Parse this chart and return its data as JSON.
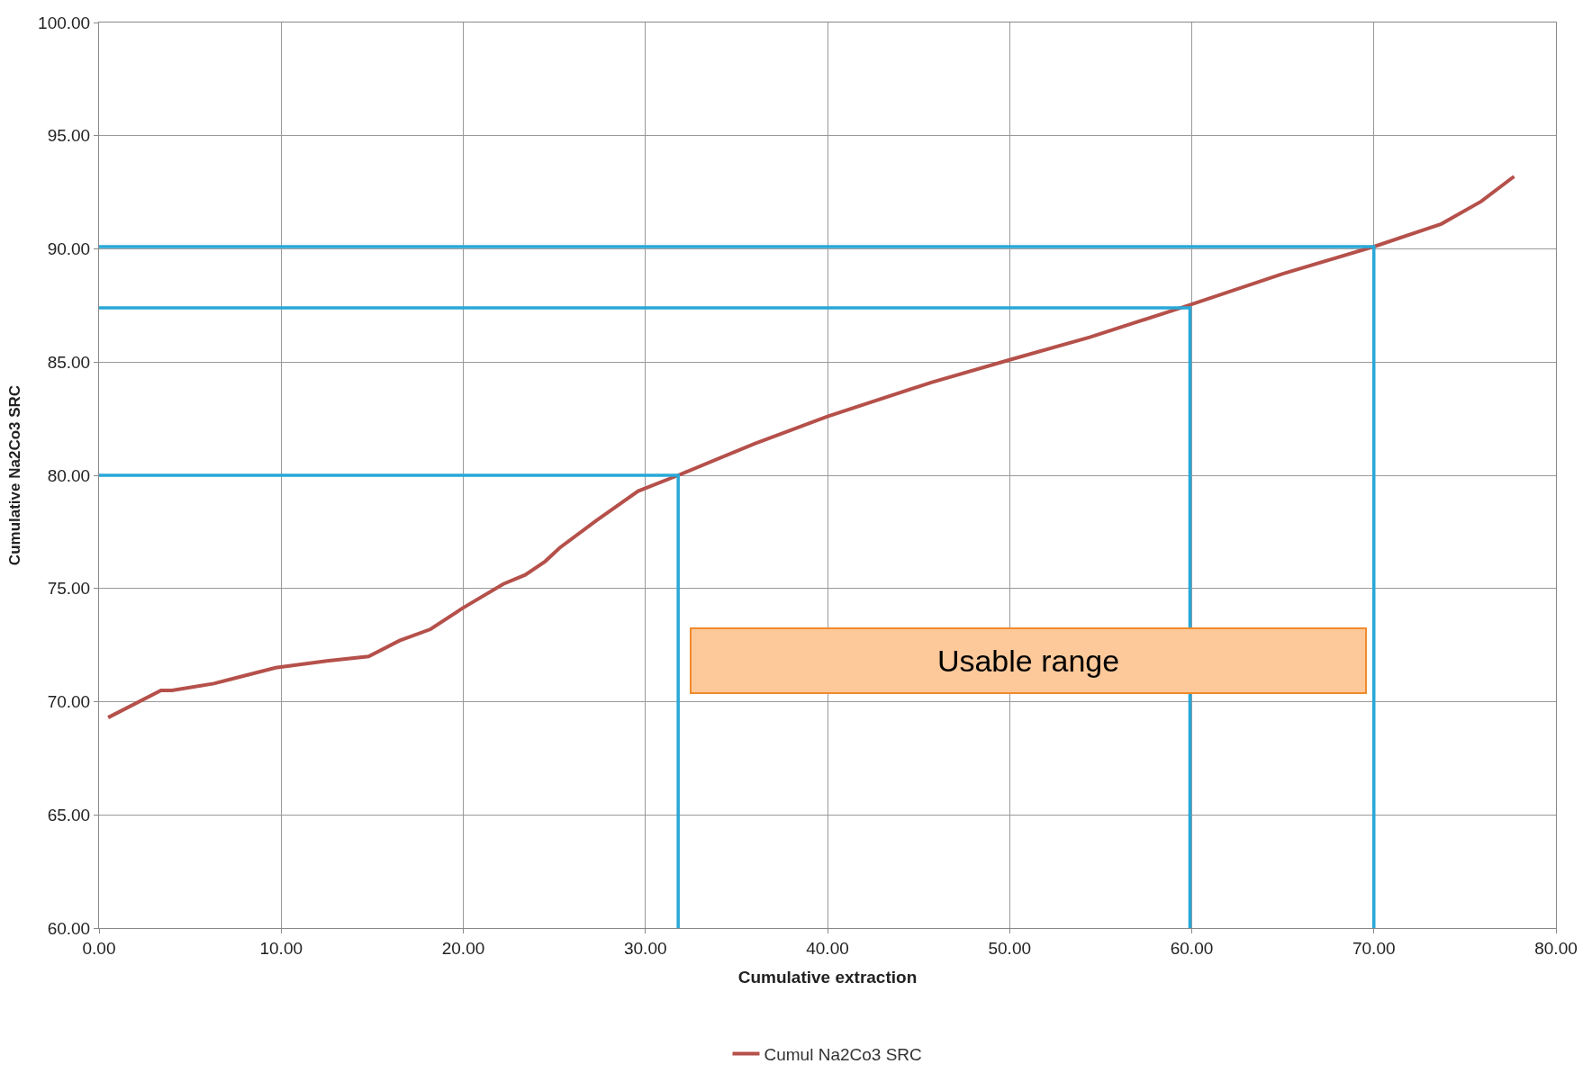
{
  "chart_data": {
    "type": "line",
    "xlabel": "Cumulative extraction",
    "ylabel": "Cumulative Na2Co3 SRC",
    "xlim": [
      0,
      80
    ],
    "ylim": [
      60,
      100
    ],
    "xticks": [
      {
        "value": 0,
        "label": "0.00"
      },
      {
        "value": 10,
        "label": "10.00"
      },
      {
        "value": 20,
        "label": "20.00"
      },
      {
        "value": 30,
        "label": "30.00"
      },
      {
        "value": 40,
        "label": "40.00"
      },
      {
        "value": 50,
        "label": "50.00"
      },
      {
        "value": 60,
        "label": "60.00"
      },
      {
        "value": 70,
        "label": "70.00"
      },
      {
        "value": 80,
        "label": "80.00"
      }
    ],
    "yticks": [
      {
        "value": 60,
        "label": "60.00"
      },
      {
        "value": 65,
        "label": "65.00"
      },
      {
        "value": 70,
        "label": "70.00"
      },
      {
        "value": 75,
        "label": "75.00"
      },
      {
        "value": 80,
        "label": "80.00"
      },
      {
        "value": 85,
        "label": "85.00"
      },
      {
        "value": 90,
        "label": "90.00"
      },
      {
        "value": 95,
        "label": "95.00"
      },
      {
        "value": 100,
        "label": "100.00"
      }
    ],
    "grid": true,
    "legend": "bottom",
    "marker": "none",
    "line_style": "solid",
    "series": [
      {
        "name": "Cumul Na2Co3 SRC",
        "color": "#b5504a",
        "x": [
          0.5,
          3.4,
          4.0,
          6.3,
          9.7,
          12.5,
          14.8,
          16.5,
          18.2,
          19.9,
          22.2,
          23.4,
          24.5,
          25.3,
          27.3,
          29.6,
          31.8,
          36.0,
          40.0,
          45.7,
          50.0,
          54.4,
          59.8,
          65.0,
          70.0,
          73.7,
          75.9,
          77.7
        ],
        "values": [
          69.3,
          70.5,
          70.5,
          70.8,
          71.5,
          71.8,
          72.0,
          72.7,
          73.2,
          74.1,
          75.2,
          75.6,
          76.2,
          76.8,
          78.0,
          79.3,
          80.0,
          81.4,
          82.6,
          84.1,
          85.1,
          86.1,
          87.5,
          88.9,
          90.1,
          91.1,
          92.1,
          93.2
        ]
      },
      {
        "color": "#29a8d8",
        "x": [
          0,
          31.8,
          31.8
        ],
        "values": [
          80.0,
          80.0,
          60
        ]
      },
      {
        "color": "#29a8d8",
        "x": [
          0,
          59.9,
          59.9
        ],
        "values": [
          87.4,
          87.4,
          60
        ]
      },
      {
        "color": "#29a8d8",
        "x": [
          0,
          70.0,
          70.0
        ],
        "values": [
          90.1,
          90.1,
          60
        ]
      }
    ],
    "annotations": [
      "Usable range"
    ]
  }
}
